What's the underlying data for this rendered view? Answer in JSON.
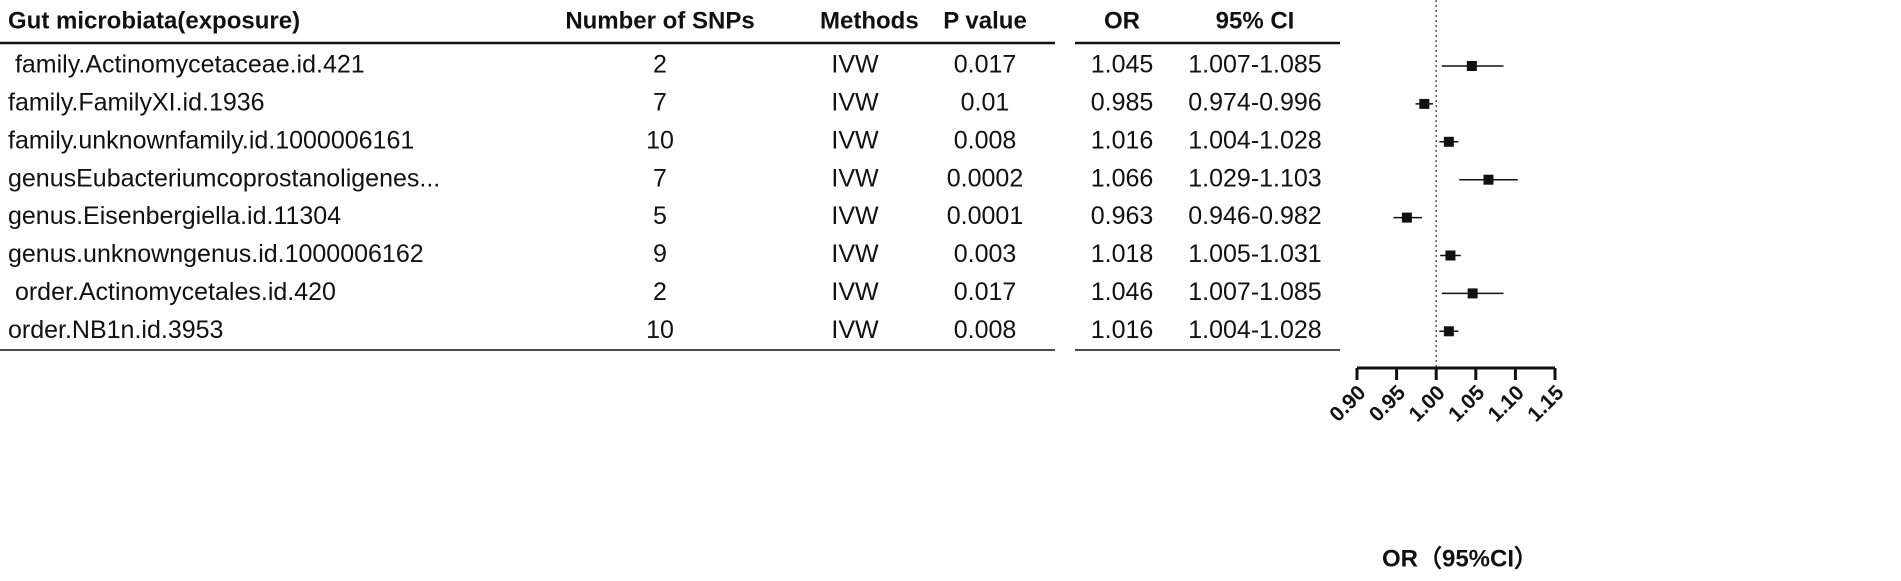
{
  "chart_data": {
    "type": "forest",
    "columns": [
      "Gut microbiata(exposure)",
      "Number of SNPs",
      "Methods",
      "P value",
      "OR",
      "95% CI"
    ],
    "exposure": [
      " family.Actinomycetaceae.id.421",
      "family.FamilyXI.id.1936",
      "family.unknownfamily.id.1000006161",
      "genusEubacteriumcoprostanoligenes...",
      "genus.Eisenbergiella.id.11304",
      "genus.unknowngenus.id.1000006162",
      " order.Actinomycetales.id.420",
      "order.NB1n.id.3953"
    ],
    "snps": [
      2,
      7,
      10,
      7,
      5,
      9,
      2,
      10
    ],
    "methods": [
      "IVW",
      "IVW",
      "IVW",
      "IVW",
      "IVW",
      "IVW",
      "IVW",
      "IVW"
    ],
    "p_values": [
      0.017,
      0.01,
      0.008,
      0.0002,
      0.0001,
      0.003,
      0.017,
      0.008
    ],
    "values": [
      1.045,
      0.985,
      1.016,
      1.066,
      0.963,
      1.018,
      1.046,
      1.016
    ],
    "lower": [
      1.007,
      0.974,
      1.004,
      1.029,
      0.946,
      1.005,
      1.007,
      1.004
    ],
    "upper": [
      1.085,
      0.996,
      1.028,
      1.103,
      0.982,
      1.031,
      1.085,
      1.028
    ],
    "ci_labels": [
      "1.007-1.085",
      "0.974-0.996",
      "1.004-1.028",
      "1.029-1.103",
      "0.946-0.982",
      "1.005-1.031",
      "1.007-1.085",
      "1.004-1.028"
    ],
    "xlim": [
      0.9,
      1.15
    ],
    "xticks": [
      {
        "value": 0.9,
        "label": "0.90"
      },
      {
        "value": 0.95,
        "label": "0.95"
      },
      {
        "value": 1.0,
        "label": "1.00"
      },
      {
        "value": 1.05,
        "label": "1.05"
      },
      {
        "value": 1.1,
        "label": "1.10"
      },
      {
        "value": 1.15,
        "label": "1.15"
      }
    ],
    "xlabel": "OR（95%CI）",
    "color": "#111111"
  }
}
